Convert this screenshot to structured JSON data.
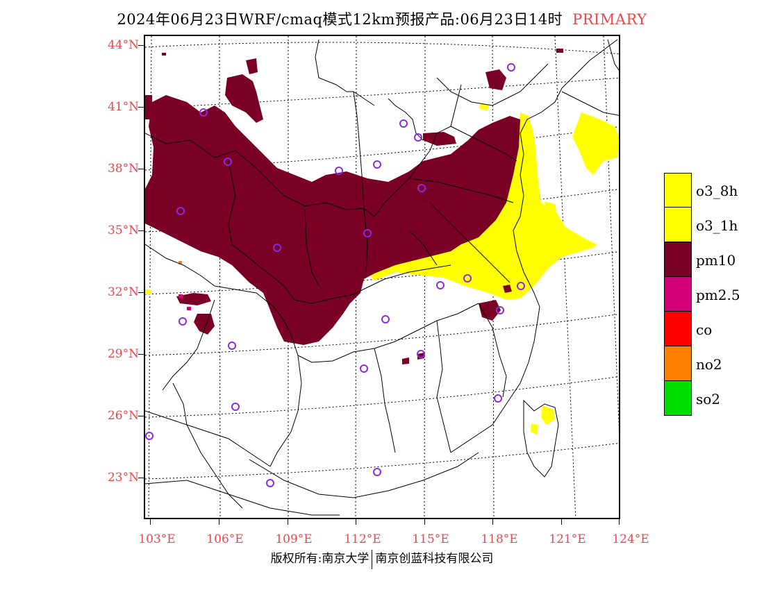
{
  "title": {
    "main": "2024年06月23日WRF/cmaq模式12km预报产品:06月23日14时",
    "tag": "PRIMARY"
  },
  "map": {
    "lat_labels": [
      "44°N",
      "41°N",
      "38°N",
      "35°N",
      "32°N",
      "29°N",
      "26°N",
      "23°N"
    ],
    "lon_labels": [
      "103°E",
      "106°E",
      "109°E",
      "112°E",
      "115°E",
      "118°E",
      "121°E",
      "124°E"
    ],
    "colors": {
      "pm10": "#7a0026",
      "o3": "#ffff00",
      "station": "#8a2be2",
      "border": "#000000",
      "grid": "#000000"
    }
  },
  "legend": {
    "items": [
      {
        "label": "o3_8h",
        "color": "#ffff00"
      },
      {
        "label": "o3_1h",
        "color": "#ffff00"
      },
      {
        "label": "pm10",
        "color": "#7a0026"
      },
      {
        "label": "pm2.5",
        "color": "#d4007a"
      },
      {
        "label": "co",
        "color": "#ff0000"
      },
      {
        "label": "no2",
        "color": "#ff8000"
      },
      {
        "label": "so2",
        "color": "#00dd00"
      }
    ]
  },
  "footer": {
    "left": "版权所有:南京大学",
    "right": "南京创蓝科技有限公司"
  }
}
